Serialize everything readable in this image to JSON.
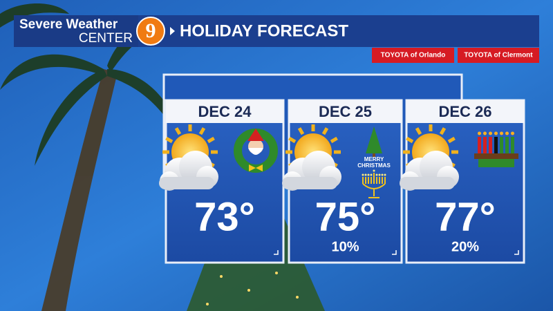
{
  "header": {
    "brand_line1": "Severe Weather",
    "brand_line2": "CENTER",
    "channel": "9",
    "title": "HOLIDAY FORECAST"
  },
  "sponsors": [
    "TOYOTA of Orlando",
    "TOYOTA of Clermont"
  ],
  "days": [
    {
      "date": "DEC 24",
      "temp": "73°"
    },
    {
      "date": "DEC 25",
      "temp": "75°",
      "precip": "10%",
      "holiday_lines": [
        "MERRY",
        "CHRISTMAS"
      ]
    },
    {
      "date": "DEC 26",
      "temp": "77°",
      "precip": "20%"
    }
  ]
}
